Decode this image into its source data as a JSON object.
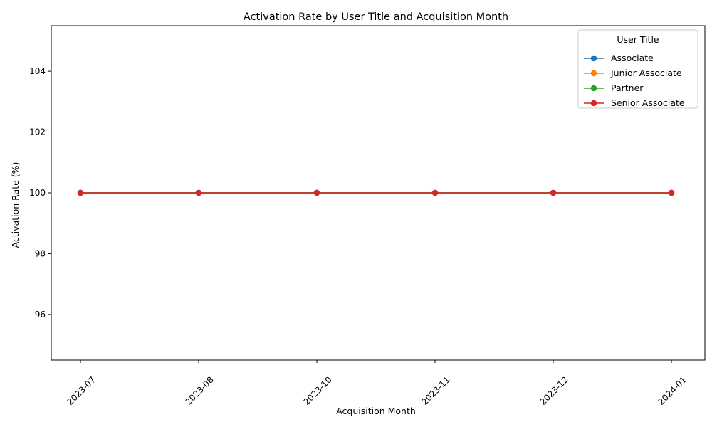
{
  "chart_data": {
    "type": "line",
    "title": "Activation Rate by User Title and Acquisition Month",
    "xlabel": "Acquisition Month",
    "ylabel": "Activation Rate (%)",
    "categories": [
      "2023-07",
      "2023-08",
      "2023-10",
      "2023-11",
      "2023-12",
      "2024-01"
    ],
    "ylim": [
      94.5,
      105.5
    ],
    "yticks": [
      96,
      98,
      100,
      102,
      104
    ],
    "grid": false,
    "legend": {
      "title": "User Title",
      "placement": "top-right"
    },
    "series": [
      {
        "name": "Associate",
        "color": "#1f77b4",
        "values": [
          100,
          100,
          100,
          100,
          100,
          100
        ]
      },
      {
        "name": "Junior Associate",
        "color": "#ff7f0e",
        "values": [
          100,
          100,
          100,
          100,
          100,
          100
        ]
      },
      {
        "name": "Partner",
        "color": "#2ca02c",
        "values": [
          100,
          100,
          100,
          100,
          100,
          100
        ]
      },
      {
        "name": "Senior Associate",
        "color": "#d62728",
        "values": [
          100,
          100,
          100,
          100,
          100,
          100
        ]
      }
    ]
  }
}
